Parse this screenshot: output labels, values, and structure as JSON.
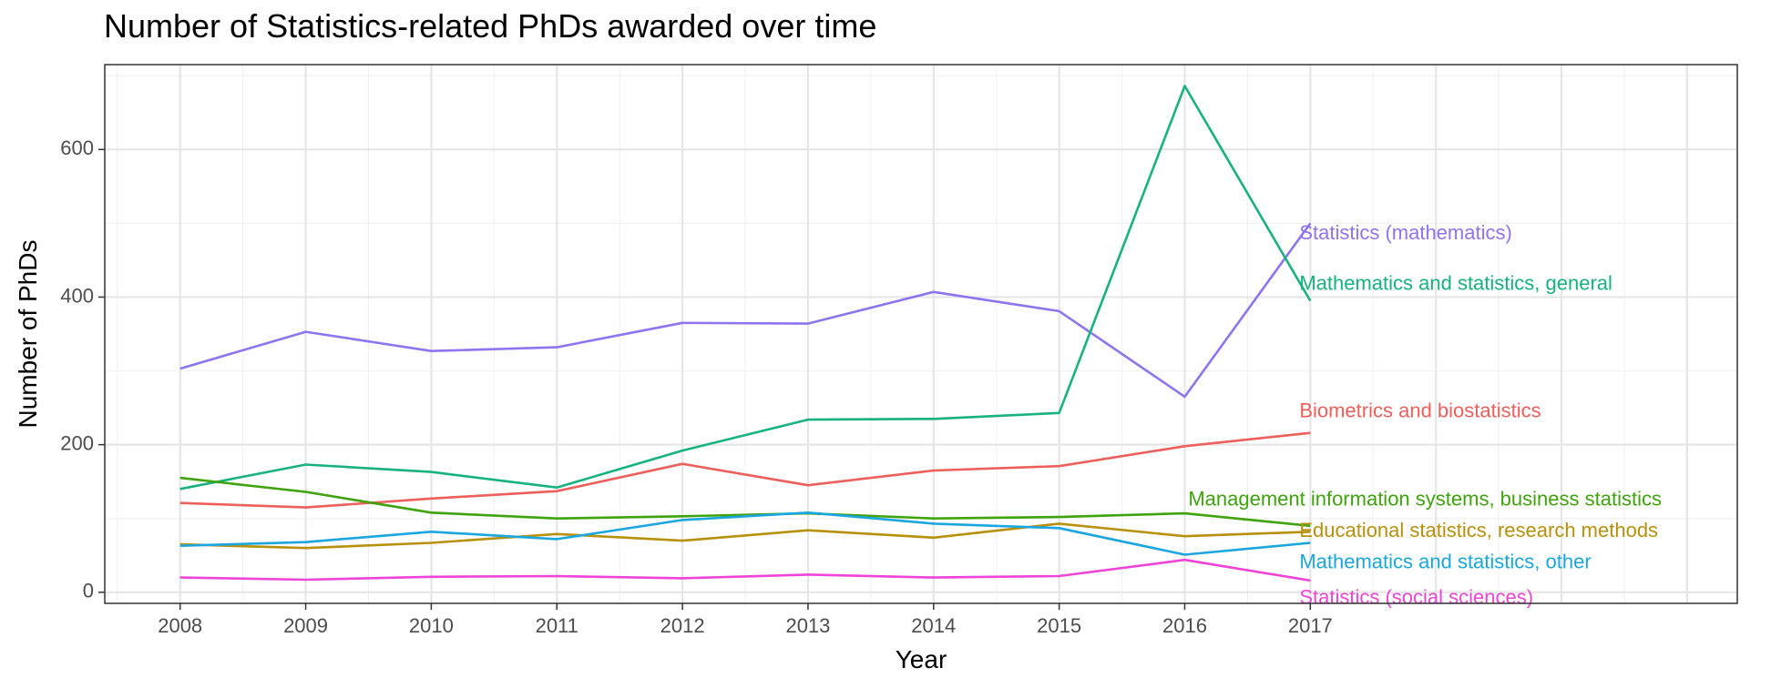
{
  "chart_data": {
    "type": "line",
    "title": "Number of Statistics-related PhDs awarded over time",
    "xlabel": "Year",
    "ylabel": "Number of PhDs",
    "x": [
      2008,
      2009,
      2010,
      2011,
      2012,
      2013,
      2014,
      2015,
      2016,
      2017
    ],
    "xlim": [
      2007.4,
      2020.4
    ],
    "ylim": [
      -15,
      715
    ],
    "yticks": [
      0,
      200,
      400,
      600
    ],
    "grid": true,
    "legend": "direct labels at series end",
    "series": [
      {
        "name": "Statistics (mathematics)",
        "color": "#8f74f0",
        "values": [
          303,
          353,
          327,
          332,
          365,
          364,
          407,
          381,
          265,
          500
        ]
      },
      {
        "name": "Mathematics and statistics, general",
        "color": "#17b27d",
        "values": [
          140,
          173,
          163,
          142,
          192,
          234,
          235,
          243,
          686,
          395
        ]
      },
      {
        "name": "Biometrics and biostatistics",
        "color": "#ec5f5b",
        "values": [
          121,
          115,
          127,
          137,
          174,
          145,
          165,
          171,
          198,
          216
        ]
      },
      {
        "name": "Management information systems, business statistics",
        "color": "#3ea30d",
        "values": [
          155,
          136,
          108,
          100,
          103,
          107,
          100,
          102,
          107,
          90
        ]
      },
      {
        "name": "Educational statistics, research methods",
        "color": "#b7900d",
        "values": [
          65,
          60,
          67,
          79,
          70,
          84,
          74,
          93,
          76,
          82
        ]
      },
      {
        "name": "Mathematics and statistics, other",
        "color": "#1ba6e0",
        "values": [
          63,
          68,
          82,
          72,
          98,
          108,
          93,
          87,
          51,
          67
        ]
      },
      {
        "name": "Statistics (social sciences)",
        "color": "#ee44d7",
        "values": [
          20,
          17,
          21,
          22,
          19,
          24,
          20,
          22,
          44,
          16
        ]
      }
    ]
  }
}
